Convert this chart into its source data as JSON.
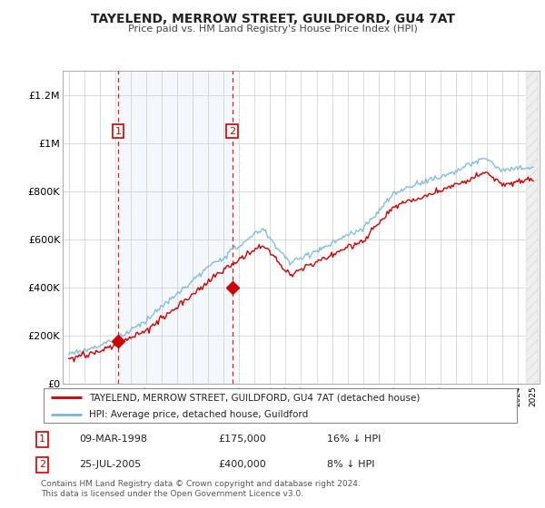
{
  "title": "TAYELEND, MERROW STREET, GUILDFORD, GU4 7AT",
  "subtitle": "Price paid vs. HM Land Registry's House Price Index (HPI)",
  "ylim": [
    0,
    1300000
  ],
  "yticks": [
    0,
    200000,
    400000,
    600000,
    800000,
    1000000,
    1200000
  ],
  "ytick_labels": [
    "£0",
    "£200K",
    "£400K",
    "£600K",
    "£800K",
    "£1M",
    "£1.2M"
  ],
  "x_start_year": 1995,
  "x_end_year": 2025,
  "sale1_date": 1998.19,
  "sale1_price": 175000,
  "sale1_label": "1",
  "sale2_date": 2005.56,
  "sale2_price": 400000,
  "sale2_label": "2",
  "legend_line1": "TAYELEND, MERROW STREET, GUILDFORD, GU4 7AT (detached house)",
  "legend_line2": "HPI: Average price, detached house, Guildford",
  "table_row1_date": "09-MAR-1998",
  "table_row1_price": "£175,000",
  "table_row1_hpi": "16% ↓ HPI",
  "table_row2_date": "25-JUL-2005",
  "table_row2_price": "£400,000",
  "table_row2_hpi": "8% ↓ HPI",
  "footnote": "Contains HM Land Registry data © Crown copyright and database right 2024.\nThis data is licensed under the Open Government Licence v3.0.",
  "hpi_color": "#7ab8d8",
  "price_color": "#cc0000",
  "shade_color": "#ddeeff",
  "grid_color": "#cccccc",
  "background_color": "#ffffff"
}
